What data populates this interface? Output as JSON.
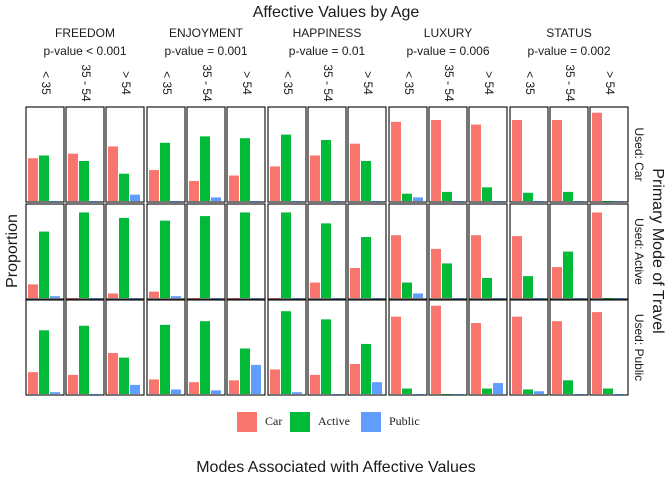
{
  "chart_data": {
    "type": "bar",
    "title": "Affective Values by Age",
    "x_label": "Modes Associated with Affective Values",
    "y_label": "Proportion",
    "row_title": "Primary Mode of Travel",
    "facets": [
      {
        "name": "FREEDOM",
        "subtitle": "p-value  < 0.001"
      },
      {
        "name": "ENJOYMENT",
        "subtitle": "p-value = 0.001"
      },
      {
        "name": "HAPPINESS",
        "subtitle": "p-value = 0.01"
      },
      {
        "name": "LUXURY",
        "subtitle": "p-value = 0.006"
      },
      {
        "name": "STATUS",
        "subtitle": "p-value = 0.002"
      }
    ],
    "categories": [
      "< 35",
      "35 - 54",
      "> 54"
    ],
    "rows": [
      "Used: Car",
      "Used: Active",
      "Used: Public"
    ],
    "ylim": [
      0,
      1
    ],
    "series": [
      {
        "name": "Car",
        "color": "#f8766d",
        "values": [
          [
            0.47,
            0.52,
            0.6,
            0.34,
            0.22,
            0.28,
            0.38,
            0.5,
            0.63,
            0.87,
            0.89,
            0.84,
            0.89,
            0.89,
            0.97
          ],
          [
            0.15,
            0,
            0.05,
            0.07,
            0,
            0,
            0,
            0.17,
            0.33,
            0.69,
            0.54,
            0.69,
            0.68,
            0.34,
            0.94
          ],
          [
            0.24,
            0.21,
            0.45,
            0.16,
            0.13,
            0.15,
            0.27,
            0.21,
            0.33,
            0.85,
            0.97,
            0.78,
            0.85,
            0.8,
            0.9
          ]
        ]
      },
      {
        "name": "Active",
        "color": "#00ba38",
        "values": [
          [
            0.5,
            0.44,
            0.3,
            0.64,
            0.71,
            0.69,
            0.73,
            0.67,
            0.44,
            0.08,
            0.1,
            0.15,
            0.09,
            0.1,
            0
          ],
          [
            0.73,
            0.94,
            0.88,
            0.85,
            0.9,
            0.94,
            0.94,
            0.82,
            0.67,
            0.17,
            0.38,
            0.22,
            0.24,
            0.51,
            0
          ],
          [
            0.7,
            0.75,
            0.4,
            0.76,
            0.8,
            0.5,
            0.91,
            0.82,
            0.55,
            0.06,
            0,
            0.06,
            0.05,
            0.15,
            0.06
          ]
        ]
      },
      {
        "name": "Public",
        "color": "#619cff",
        "values": [
          [
            0,
            0,
            0.07,
            0,
            0.04,
            0,
            0,
            0,
            0,
            0.04,
            0,
            0,
            0,
            0,
            0
          ],
          [
            0.02,
            0,
            0,
            0.02,
            0,
            0,
            0,
            0,
            0,
            0.05,
            0,
            0,
            0,
            0,
            0
          ],
          [
            0.02,
            0,
            0.1,
            0.05,
            0.04,
            0.32,
            0.02,
            0,
            0.13,
            0,
            0,
            0.12,
            0.03,
            0,
            0
          ]
        ]
      }
    ]
  }
}
